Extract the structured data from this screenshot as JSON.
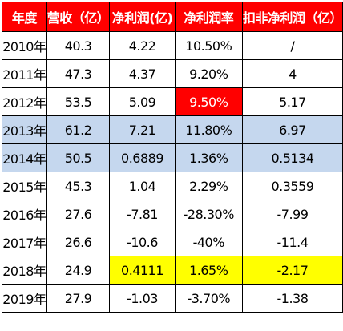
{
  "table": {
    "headers": [
      "年度",
      "营收（亿）",
      "净利润(亿)",
      "净利润率",
      "扣非净利润（亿）"
    ],
    "rows": [
      {
        "year": "2010年",
        "revenue": "40.3",
        "net_profit": "4.22",
        "margin": "10.50%",
        "adj_profit": "/"
      },
      {
        "year": "2011年",
        "revenue": "47.3",
        "net_profit": "4.37",
        "margin": "9.20%",
        "adj_profit": "4"
      },
      {
        "year": "2012年",
        "revenue": "53.5",
        "net_profit": "5.09",
        "margin": "9.50%",
        "adj_profit": "5.17"
      },
      {
        "year": "2013年",
        "revenue": "61.2",
        "net_profit": "7.21",
        "margin": "11.80%",
        "adj_profit": "6.97"
      },
      {
        "year": "2014年",
        "revenue": "50.5",
        "net_profit": "0.6889",
        "margin": "1.36%",
        "adj_profit": "0.5134"
      },
      {
        "year": "2015年",
        "revenue": "45.3",
        "net_profit": "1.04",
        "margin": "2.29%",
        "adj_profit": "0.3559"
      },
      {
        "year": "2016年",
        "revenue": "27.6",
        "net_profit": "-7.81",
        "margin": "-28.30%",
        "adj_profit": "-7.99"
      },
      {
        "year": "2017年",
        "revenue": "26.6",
        "net_profit": "-10.6",
        "margin": "-40%",
        "adj_profit": "-11.4"
      },
      {
        "year": "2018年",
        "revenue": "24.9",
        "net_profit": "0.4111",
        "margin": "1.65%",
        "adj_profit": "-2.17"
      },
      {
        "year": "2019年",
        "revenue": "27.9",
        "net_profit": "-1.03",
        "margin": "-3.70%",
        "adj_profit": "-1.38"
      }
    ]
  },
  "colors": {
    "header_bg": "#ff0000",
    "highlight_red": "#ff0000",
    "highlight_blue": "#c5d7ee",
    "highlight_yellow": "#ffff00"
  }
}
